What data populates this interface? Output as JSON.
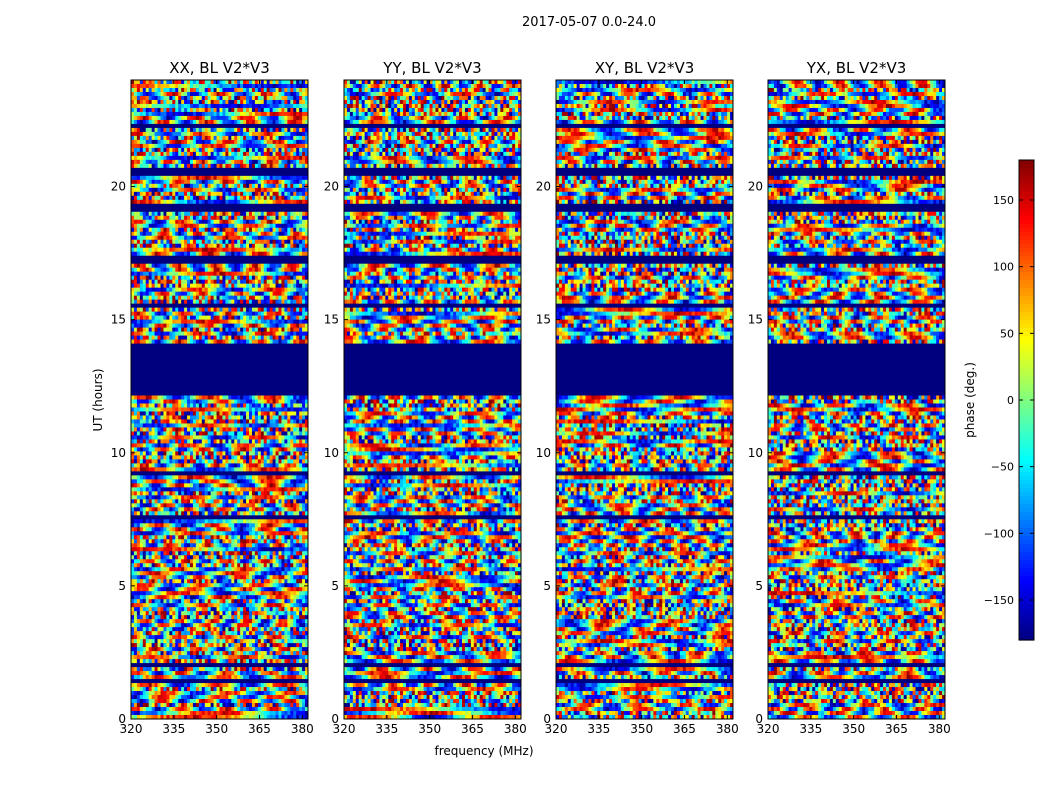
{
  "figure": {
    "suptitle": "2017-05-07 0.0-24.0",
    "xlabel": "frequency (MHz)",
    "ylabel": "UT (hours)"
  },
  "chart_data": {
    "type": "heatmap",
    "x_range_mhz": [
      320,
      382
    ],
    "y_range_hours": [
      0,
      24
    ],
    "x_ticks": [
      320,
      335,
      350,
      365,
      380
    ],
    "y_ticks": [
      0,
      5,
      10,
      15,
      20
    ],
    "panels": [
      {
        "title": "XX, BL V2*V3"
      },
      {
        "title": "YY, BL V2*V3"
      },
      {
        "title": "XY, BL V2*V3"
      },
      {
        "title": "YX, BL V2*V3"
      }
    ],
    "flagged_hours": [
      [
        12.1,
        14.1
      ],
      [
        17.1,
        17.4
      ],
      [
        20.4,
        20.7
      ],
      [
        19.1,
        19.3
      ],
      [
        16.0,
        16.1
      ],
      [
        15.5,
        15.6
      ],
      [
        9.2,
        9.3
      ],
      [
        7.5,
        7.6
      ],
      [
        3.4,
        3.5
      ],
      [
        2.0,
        2.1
      ],
      [
        1.4,
        1.5
      ],
      [
        22.2,
        22.3
      ]
    ],
    "colorbar": {
      "label": "phase (deg.)",
      "range": [
        -180,
        180
      ],
      "ticks": [
        150,
        100,
        50,
        0,
        -50,
        -100,
        -150
      ],
      "colormap": "jet"
    }
  }
}
